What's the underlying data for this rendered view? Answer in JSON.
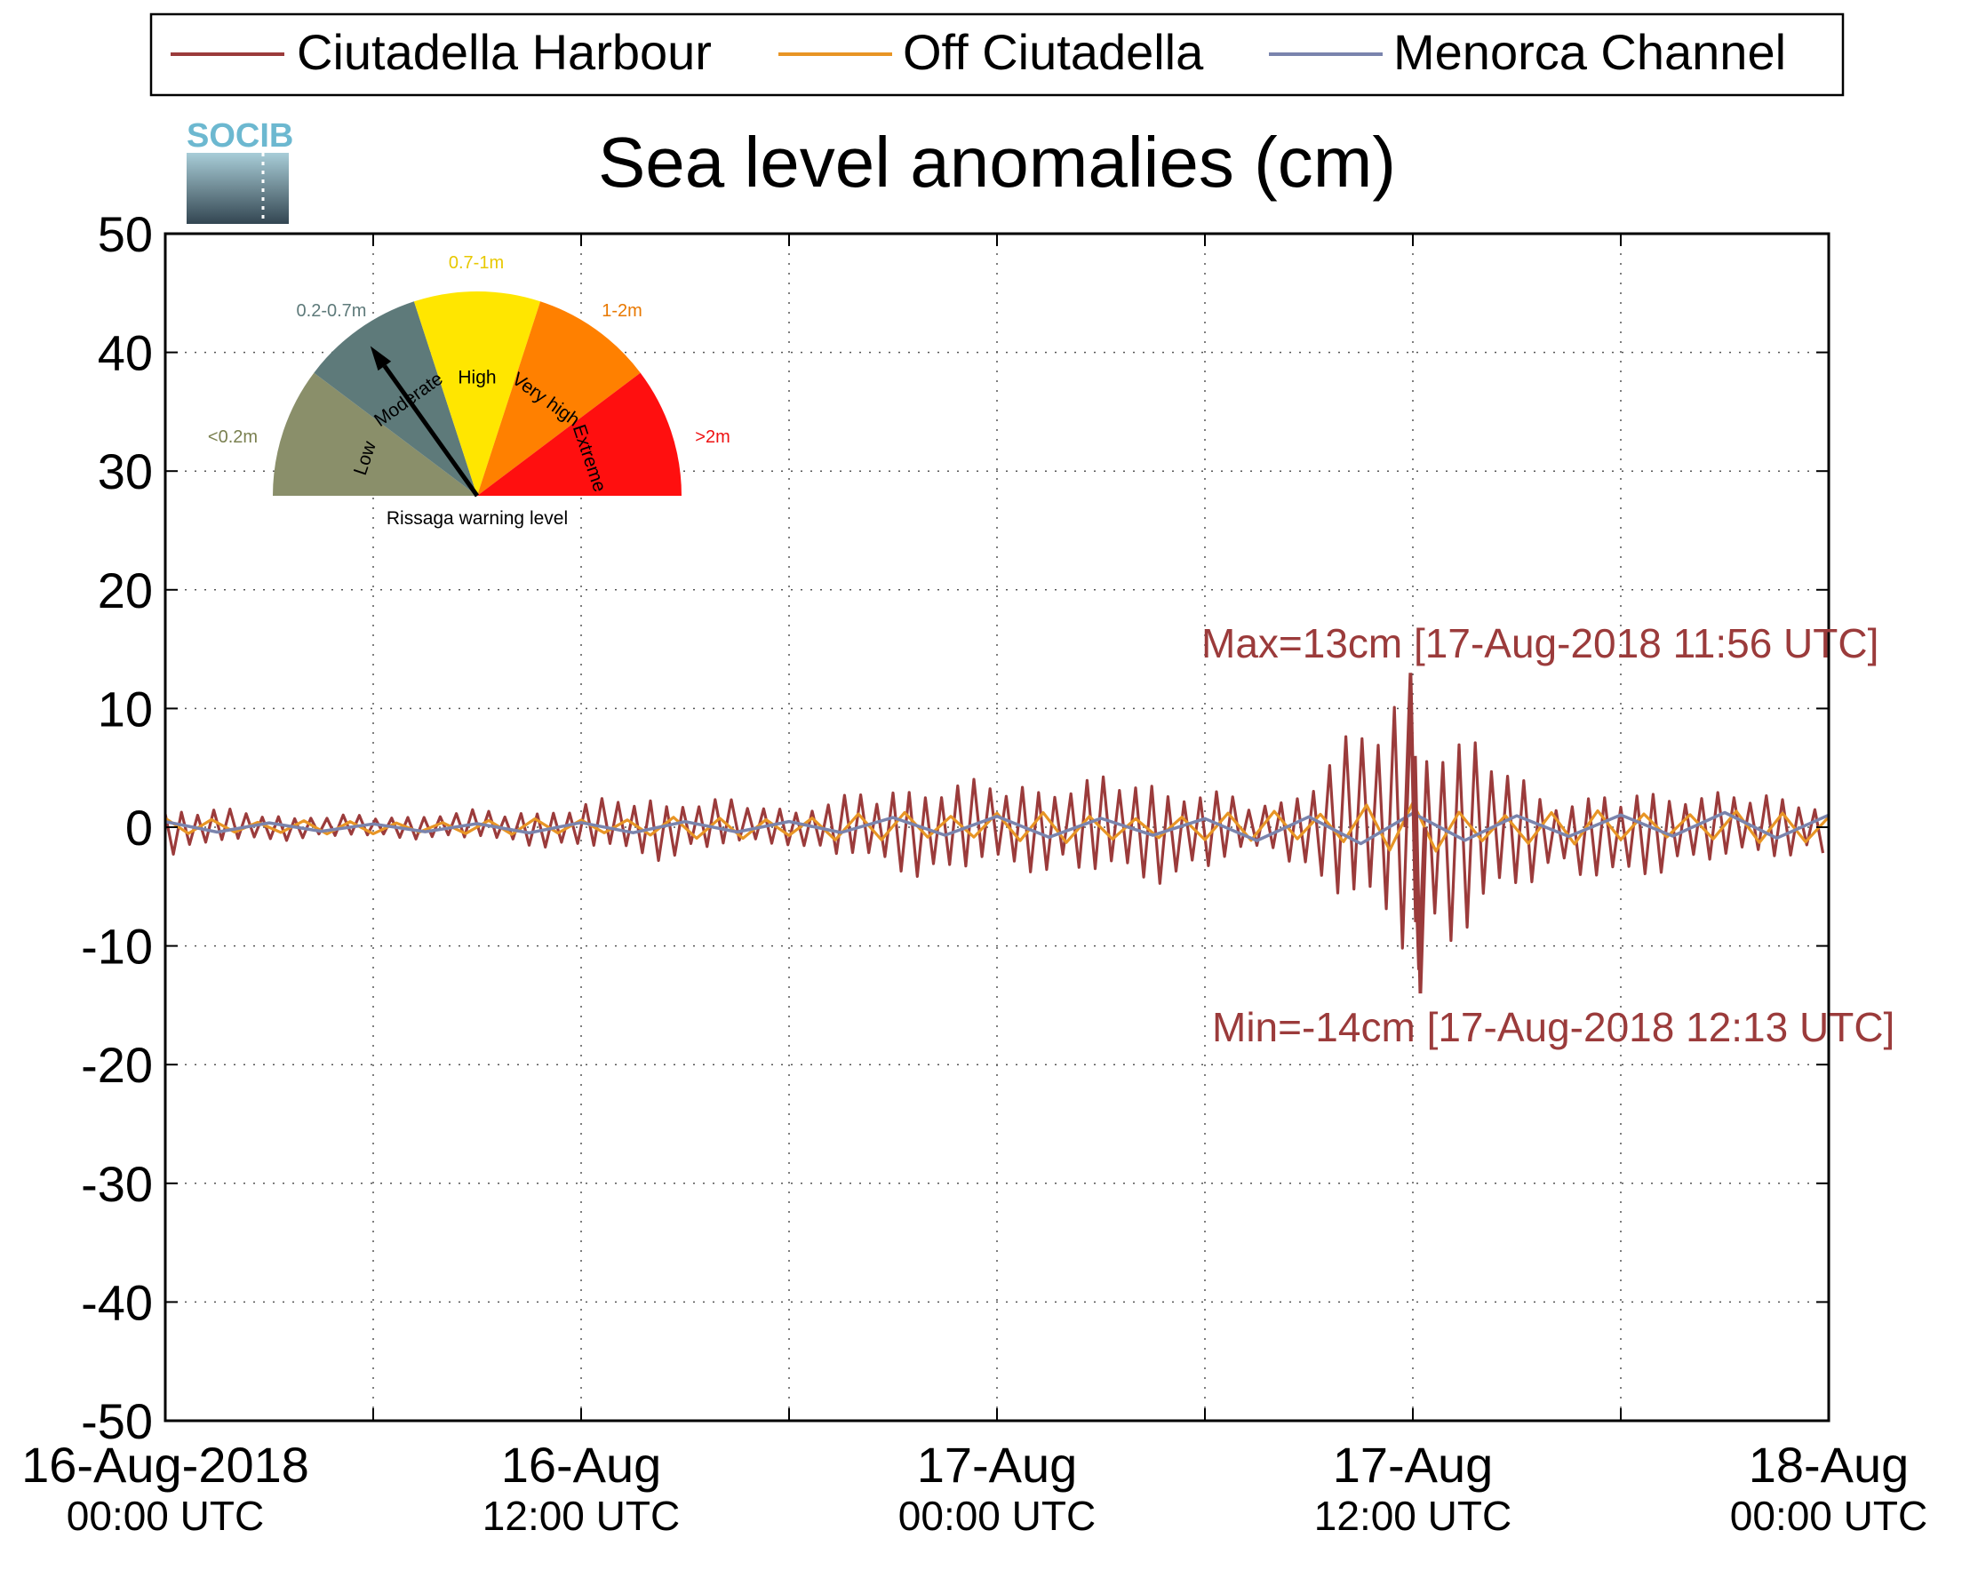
{
  "logo": {
    "text": "SOCIB"
  },
  "chart_data": {
    "type": "line",
    "title": "Sea level anomalies (cm)",
    "xlabel": "",
    "ylabel": "",
    "ylim": [
      -50,
      50
    ],
    "yticks": [
      50,
      40,
      30,
      20,
      10,
      0,
      -10,
      -20,
      -30,
      -40,
      -50
    ],
    "xlim": [
      "2018-08-16 00:00",
      "2018-08-18 00:00"
    ],
    "xticks": [
      {
        "t": "2018-08-16 00:00",
        "date": "16-Aug-2018",
        "time": "00:00 UTC"
      },
      {
        "t": "2018-08-16 12:00",
        "date": "16-Aug",
        "time": "12:00 UTC"
      },
      {
        "t": "2018-08-17 00:00",
        "date": "17-Aug",
        "time": "00:00 UTC"
      },
      {
        "t": "2018-08-17 12:00",
        "date": "17-Aug",
        "time": "12:00 UTC"
      },
      {
        "t": "2018-08-18 00:00",
        "date": "18-Aug",
        "time": "00:00 UTC"
      }
    ],
    "grid": true,
    "legend_position": "top",
    "series": [
      {
        "name": "Ciutadella Harbour",
        "color": "#9b3b3b",
        "x": [
          "2018-08-16 00:00",
          "2018-08-16 02:00",
          "2018-08-16 04:00",
          "2018-08-16 06:00",
          "2018-08-16 08:00",
          "2018-08-16 10:00",
          "2018-08-16 12:00",
          "2018-08-16 14:00",
          "2018-08-16 16:00",
          "2018-08-16 18:00",
          "2018-08-16 20:00",
          "2018-08-16 22:00",
          "2018-08-17 00:00",
          "2018-08-17 02:00",
          "2018-08-17 04:00",
          "2018-08-17 06:00",
          "2018-08-17 08:00",
          "2018-08-17 10:00",
          "2018-08-17 11:56",
          "2018-08-17 12:13",
          "2018-08-17 14:00",
          "2018-08-17 16:00",
          "2018-08-17 18:00",
          "2018-08-17 20:00",
          "2018-08-17 22:00",
          "2018-08-18 00:00"
        ],
        "max": [
          2.0,
          1.5,
          1.2,
          1.0,
          1.5,
          1.5,
          2.2,
          3.0,
          2.5,
          2.0,
          3.0,
          4.5,
          4.0,
          4.5,
          4.5,
          3.5,
          2.0,
          8.0,
          13.0,
          10.0,
          7.5,
          2.5,
          3.0,
          3.5,
          3.0,
          2.5
        ],
        "min": [
          -2.5,
          -1.5,
          -1.0,
          -1.0,
          -1.0,
          -1.5,
          -2.0,
          -3.0,
          -2.0,
          -1.5,
          -3.5,
          -4.5,
          -4.0,
          -4.0,
          -5.5,
          -4.0,
          -2.0,
          -7.0,
          -12.0,
          -14.0,
          -9.0,
          -3.5,
          -6.0,
          -3.0,
          -3.0,
          -2.5
        ],
        "extremes": {
          "max": 13,
          "min": -14
        }
      },
      {
        "name": "Off Ciutadella",
        "color": "#e89525",
        "x": [
          "2018-08-16 00:00",
          "2018-08-16 06:00",
          "2018-08-16 12:00",
          "2018-08-16 18:00",
          "2018-08-17 00:00",
          "2018-08-17 06:00",
          "2018-08-17 10:00",
          "2018-08-17 12:00",
          "2018-08-17 14:00",
          "2018-08-17 18:00",
          "2018-08-18 00:00"
        ],
        "max": [
          0.8,
          0.6,
          0.8,
          1.2,
          1.5,
          1.2,
          2.0,
          2.5,
          1.8,
          1.5,
          1.5
        ],
        "min": [
          -0.8,
          -0.6,
          -0.8,
          -1.2,
          -1.5,
          -1.2,
          -2.0,
          -2.5,
          -1.8,
          -1.5,
          -1.5
        ]
      },
      {
        "name": "Menorca Channel",
        "color": "#7a84ad",
        "x": [
          "2018-08-16 00:00",
          "2018-08-16 12:00",
          "2018-08-17 00:00",
          "2018-08-17 12:00",
          "2018-08-18 00:00"
        ],
        "max": [
          0.5,
          0.5,
          1.0,
          1.5,
          1.2
        ],
        "min": [
          -0.5,
          -0.5,
          -1.0,
          -1.5,
          -1.2
        ]
      }
    ],
    "annotations": {
      "max_label": "Max=13cm [17-Aug-2018 11:56 UTC]",
      "min_label": "Min=-14cm [17-Aug-2018 12:13 UTC]"
    },
    "warning_gauge": {
      "title": "Rissaga warning level",
      "current_level": "Moderate",
      "segments": [
        {
          "label": "Low",
          "range": "<0.2m",
          "color": "#8a8f6a"
        },
        {
          "label": "Moderate",
          "range": "0.2-0.7m",
          "color": "#5e7a7a"
        },
        {
          "label": "High",
          "range": "0.7-1m",
          "color": "#ffe600"
        },
        {
          "label": "Very high",
          "range": "1-2m",
          "color": "#ff8000"
        },
        {
          "label": "Extreme",
          "range": ">2m",
          "color": "#ff0f0f"
        }
      ],
      "range_colors": [
        "#7a8050",
        "#5e7a7a",
        "#e8c800",
        "#e87800",
        "#ee1010"
      ]
    }
  }
}
